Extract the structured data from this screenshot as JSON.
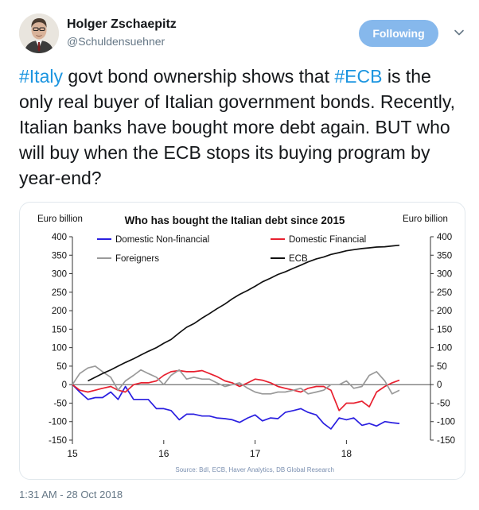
{
  "author": {
    "name": "Holger Zschaepitz",
    "handle": "@Schuldensuehner"
  },
  "follow_button": {
    "label": "Following"
  },
  "tweet": {
    "hashtag1": "#Italy",
    "text1": " govt bond ownership shows that ",
    "hashtag2": "#ECB",
    "text2": " is the only real buyer of Italian government bonds. Recently, Italian banks have bought more debt again. BUT who will buy when the ECB stops its buying program by year-end?"
  },
  "timestamp": "1:31 AM - 28 Oct 2018",
  "colors": {
    "domestic_nonfinancial": "#2a1fe0",
    "domestic_financial": "#e8202f",
    "foreigners": "#9a9a9a",
    "ecb": "#111111",
    "hashtag": "#1b95e0",
    "following_button": "#86b8ec"
  },
  "chart_data": {
    "type": "line",
    "title": "Who has bought the Italian debt since 2015",
    "ylabel_left": "Euro billion",
    "ylabel_right": "Euro billion",
    "source": "Source: BdI, ECB, Haver Analytics, DB Global Research",
    "ylim": [
      -150,
      400
    ],
    "yticks": [
      400,
      350,
      300,
      250,
      200,
      150,
      100,
      50,
      0,
      -50,
      -100,
      -150
    ],
    "xlim": [
      2015.0,
      2018.92
    ],
    "xticks": [
      {
        "x": 2015,
        "label": "15"
      },
      {
        "x": 2016,
        "label": "16"
      },
      {
        "x": 2017,
        "label": "17"
      },
      {
        "x": 2018,
        "label": "18"
      }
    ],
    "legend": [
      {
        "name": "Domestic  Non-financial",
        "series": 0
      },
      {
        "name": "Domestic Financial",
        "series": 1
      },
      {
        "name": "Foreigners",
        "series": 2
      },
      {
        "name": "ECB",
        "series": 3
      }
    ],
    "series": [
      {
        "name": "Domestic  Non-financial",
        "color": "#2a1fe0",
        "x": [
          2015.0,
          2015.08,
          2015.17,
          2015.25,
          2015.33,
          2015.42,
          2015.5,
          2015.58,
          2015.67,
          2015.75,
          2015.83,
          2015.92,
          2016.0,
          2016.08,
          2016.17,
          2016.25,
          2016.33,
          2016.42,
          2016.5,
          2016.58,
          2016.67,
          2016.75,
          2016.83,
          2016.92,
          2017.0,
          2017.08,
          2017.17,
          2017.25,
          2017.33,
          2017.42,
          2017.5,
          2017.58,
          2017.67,
          2017.75,
          2017.83,
          2017.92,
          2018.0,
          2018.08,
          2018.17,
          2018.25,
          2018.33,
          2018.42,
          2018.5,
          2018.58
        ],
        "y": [
          0,
          -20,
          -40,
          -35,
          -35,
          -20,
          -40,
          -5,
          -40,
          -40,
          -40,
          -65,
          -65,
          -70,
          -95,
          -80,
          -80,
          -85,
          -85,
          -90,
          -92,
          -95,
          -102,
          -90,
          -82,
          -98,
          -90,
          -92,
          -75,
          -70,
          -65,
          -75,
          -82,
          -105,
          -120,
          -90,
          -95,
          -90,
          -110,
          -105,
          -112,
          -100,
          -103,
          -105
        ]
      },
      {
        "name": "Domestic Financial",
        "color": "#e8202f",
        "x": [
          2015.0,
          2015.08,
          2015.17,
          2015.25,
          2015.33,
          2015.42,
          2015.5,
          2015.58,
          2015.67,
          2015.75,
          2015.83,
          2015.92,
          2016.0,
          2016.08,
          2016.17,
          2016.25,
          2016.33,
          2016.42,
          2016.5,
          2016.58,
          2016.67,
          2016.75,
          2016.83,
          2016.92,
          2017.0,
          2017.08,
          2017.17,
          2017.25,
          2017.33,
          2017.42,
          2017.5,
          2017.58,
          2017.67,
          2017.75,
          2017.83,
          2017.92,
          2018.0,
          2018.08,
          2018.17,
          2018.25,
          2018.33,
          2018.42,
          2018.5,
          2018.58
        ],
        "y": [
          0,
          -15,
          -20,
          -15,
          -10,
          -5,
          -15,
          -20,
          0,
          5,
          5,
          10,
          25,
          35,
          38,
          35,
          35,
          38,
          30,
          22,
          10,
          5,
          -5,
          5,
          15,
          12,
          5,
          -5,
          -10,
          -15,
          -20,
          -10,
          -5,
          -5,
          -15,
          -70,
          -50,
          -50,
          -45,
          -60,
          -20,
          -5,
          5,
          12
        ]
      },
      {
        "name": "Foreigners",
        "color": "#9a9a9a",
        "x": [
          2015.0,
          2015.08,
          2015.17,
          2015.25,
          2015.33,
          2015.42,
          2015.5,
          2015.58,
          2015.67,
          2015.75,
          2015.83,
          2015.92,
          2016.0,
          2016.08,
          2016.17,
          2016.25,
          2016.33,
          2016.42,
          2016.5,
          2016.58,
          2016.67,
          2016.75,
          2016.83,
          2016.92,
          2017.0,
          2017.08,
          2017.17,
          2017.25,
          2017.33,
          2017.42,
          2017.5,
          2017.58,
          2017.67,
          2017.75,
          2017.83,
          2017.92,
          2018.0,
          2018.08,
          2018.17,
          2018.25,
          2018.33,
          2018.42,
          2018.5,
          2018.58
        ],
        "y": [
          0,
          30,
          45,
          50,
          35,
          20,
          -15,
          10,
          25,
          40,
          30,
          20,
          0,
          25,
          40,
          15,
          20,
          15,
          15,
          5,
          -5,
          0,
          5,
          -10,
          -20,
          -25,
          -25,
          -20,
          -20,
          -15,
          -10,
          -25,
          -20,
          -15,
          0,
          0,
          10,
          -10,
          -5,
          25,
          35,
          10,
          -25,
          -15
        ]
      },
      {
        "name": "ECB",
        "color": "#111111",
        "x": [
          2015.17,
          2015.25,
          2015.33,
          2015.42,
          2015.5,
          2015.58,
          2015.67,
          2015.75,
          2015.83,
          2015.92,
          2016.0,
          2016.08,
          2016.17,
          2016.25,
          2016.33,
          2016.42,
          2016.5,
          2016.58,
          2016.67,
          2016.75,
          2016.83,
          2016.92,
          2017.0,
          2017.08,
          2017.17,
          2017.25,
          2017.33,
          2017.42,
          2017.5,
          2017.58,
          2017.67,
          2017.75,
          2017.83,
          2017.92,
          2018.0,
          2018.08,
          2018.17,
          2018.25,
          2018.33,
          2018.42,
          2018.5,
          2018.58
        ],
        "y": [
          10,
          20,
          30,
          40,
          50,
          60,
          70,
          80,
          90,
          100,
          112,
          122,
          140,
          155,
          165,
          180,
          192,
          205,
          218,
          232,
          244,
          255,
          266,
          278,
          288,
          298,
          305,
          315,
          323,
          332,
          340,
          345,
          352,
          357,
          362,
          365,
          368,
          370,
          372,
          373,
          375,
          377
        ]
      }
    ]
  }
}
